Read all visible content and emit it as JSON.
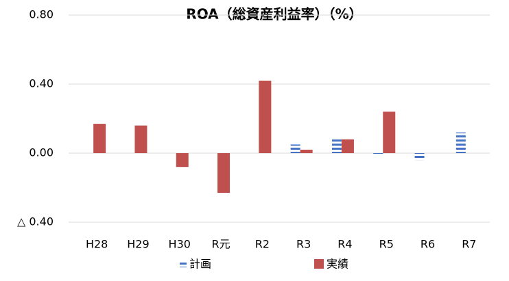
{
  "chart_data": {
    "type": "bar",
    "title": "ROA（総資産利益率）（%）",
    "categories": [
      "H28",
      "H29",
      "H30",
      "R元",
      "R2",
      "R3",
      "R4",
      "R5",
      "R6",
      "R7"
    ],
    "series": [
      {
        "name": "計画",
        "color": "#4472c4",
        "values": [
          null,
          null,
          null,
          null,
          null,
          0.05,
          0.09,
          -0.01,
          -0.04,
          0.12
        ]
      },
      {
        "name": "実績",
        "color": "#c0504d",
        "values": [
          0.17,
          0.16,
          -0.08,
          -0.23,
          0.42,
          0.02,
          0.08,
          0.24,
          null,
          null
        ]
      }
    ],
    "ylim": [
      -0.4,
      0.8
    ],
    "yticks": [
      {
        "value": -0.4,
        "label": "△ 0.40"
      },
      {
        "value": 0,
        "label": "0.00"
      },
      {
        "value": 0.4,
        "label": "0.40"
      },
      {
        "value": 0.8,
        "label": "0.80"
      }
    ],
    "grid": true,
    "legend": "bottom"
  }
}
